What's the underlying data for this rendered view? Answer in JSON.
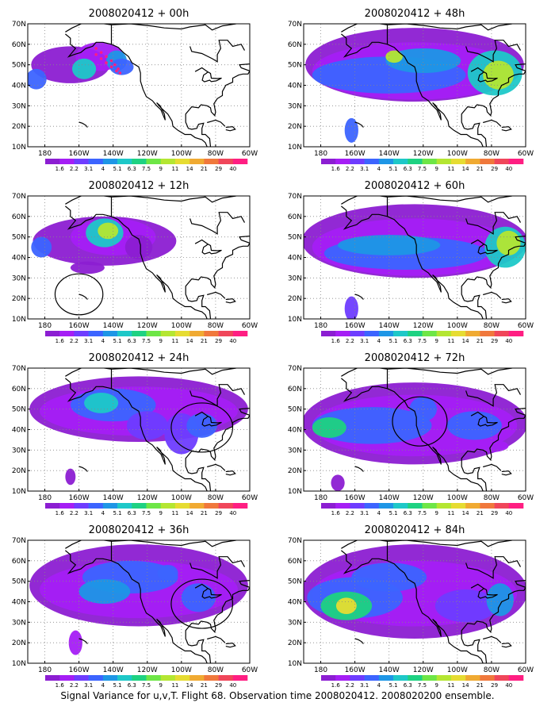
{
  "caption": "Signal Variance for u,v,T. Flight 68. Observation time 2008020412. 2008020200 ensemble.",
  "map": {
    "lon_ticks": [
      "180",
      "160W",
      "140W",
      "120W",
      "100W",
      "80W",
      "60W"
    ],
    "lat_ticks": [
      "70N",
      "60N",
      "50N",
      "40N",
      "30N",
      "20N",
      "10N"
    ],
    "lon_range": [
      -190,
      -60
    ],
    "lat_range": [
      10,
      70
    ]
  },
  "colorbar": {
    "labels": [
      "1.6",
      "2.2",
      "3.1",
      "4",
      "5.1",
      "6.3",
      "7.5",
      "9",
      "11",
      "14",
      "21",
      "29",
      "40"
    ],
    "colors": [
      "#8c1ed2",
      "#a51ef5",
      "#6e3cff",
      "#3c64ff",
      "#1e96e6",
      "#1ec8c8",
      "#1ed282",
      "#6ee646",
      "#b4e632",
      "#e6dc32",
      "#f0aa32",
      "#f0783c",
      "#f0465a",
      "#ff1e82"
    ]
  },
  "panels": [
    {
      "title": "2008020412 + 00h"
    },
    {
      "title": "2008020412 + 48h"
    },
    {
      "title": "2008020412 + 12h"
    },
    {
      "title": "2008020412 + 60h"
    },
    {
      "title": "2008020412 + 24h"
    },
    {
      "title": "2008020412 + 72h"
    },
    {
      "title": "2008020412 + 36h"
    },
    {
      "title": "2008020412 + 84h"
    }
  ]
}
